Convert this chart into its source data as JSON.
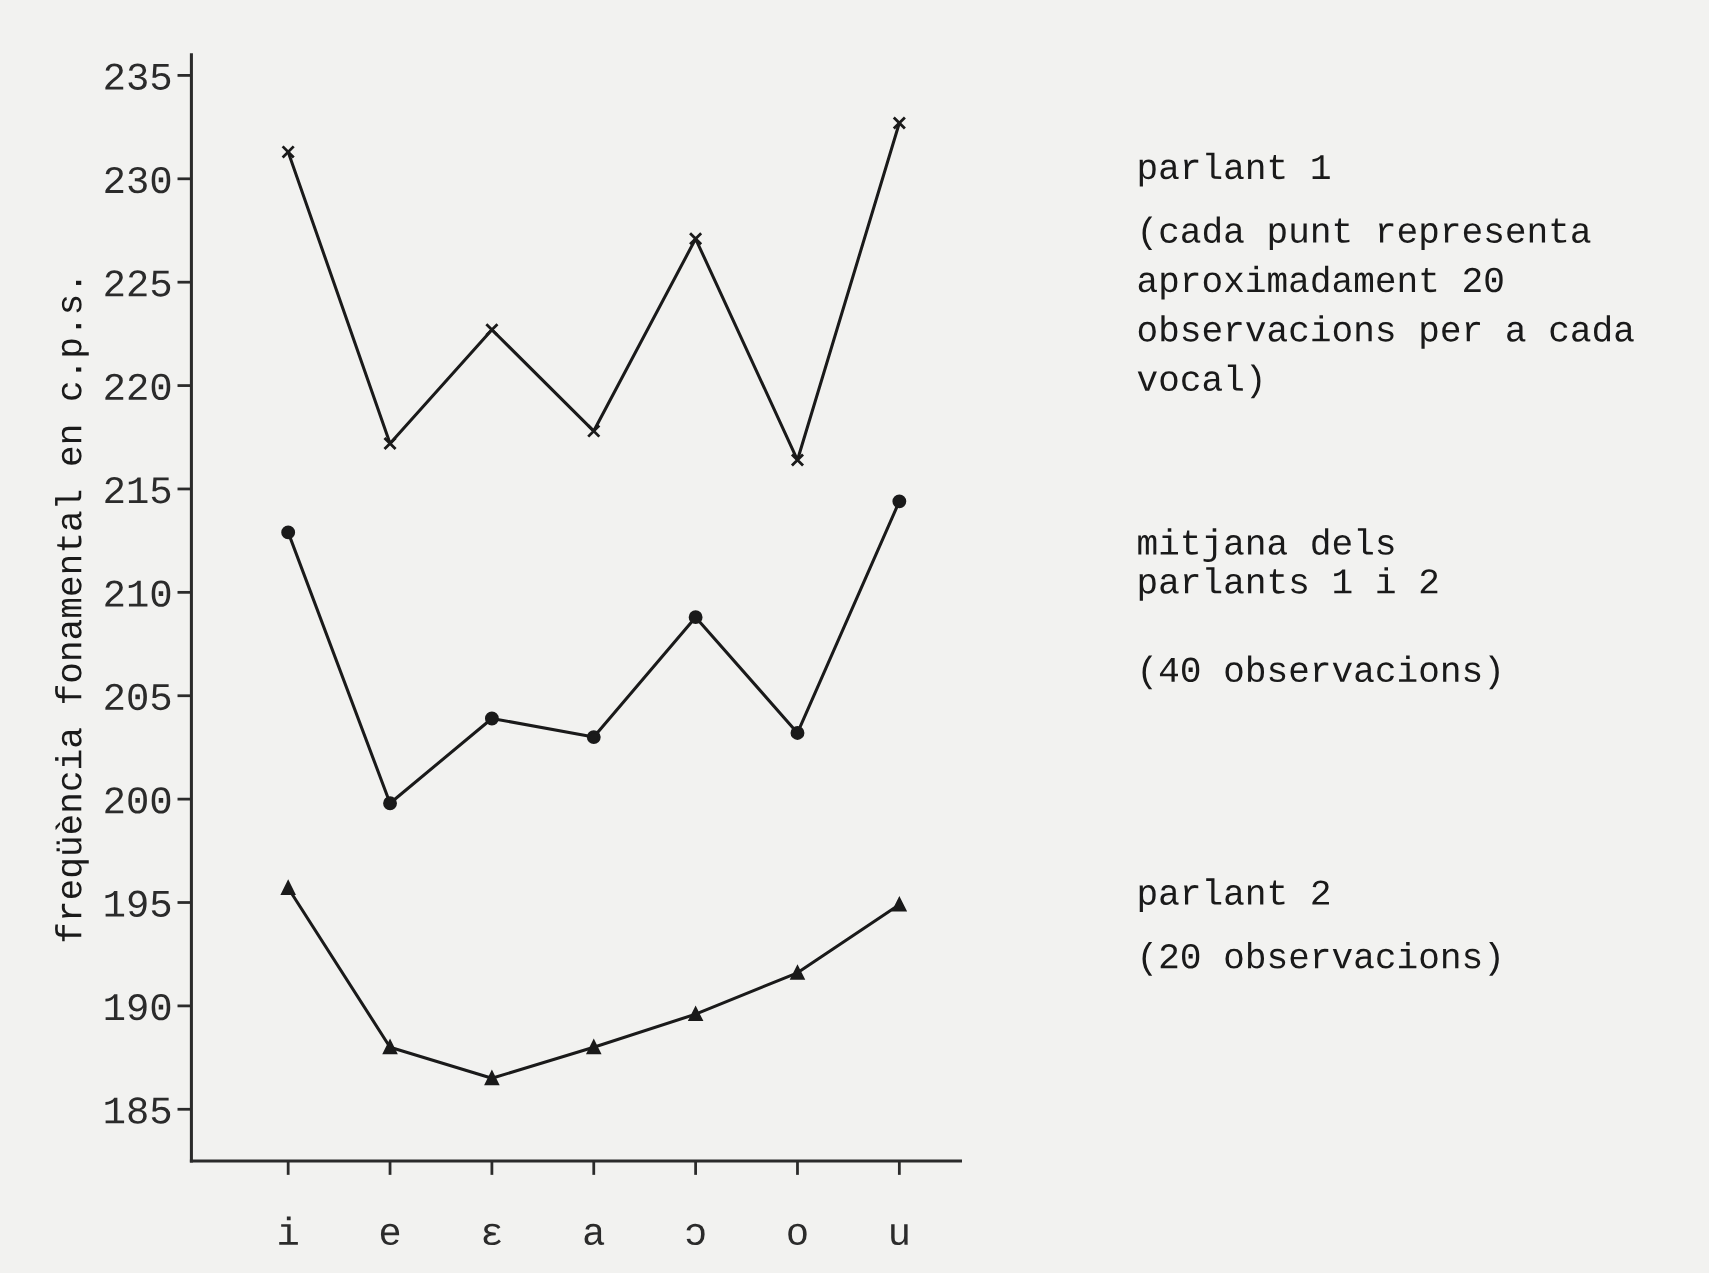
{
  "chart_data": {
    "type": "line",
    "ylabel": "freqüència fonamental en c.p.s.",
    "categories": [
      "i",
      "e",
      "ɛ",
      "a",
      "ɔ",
      "o",
      "u"
    ],
    "series": [
      {
        "name": "parlant 1",
        "color": "#1a1a1a",
        "marker": "cross",
        "values": [
          231.3,
          217.2,
          222.7,
          217.8,
          227.1,
          216.4,
          232.7
        ]
      },
      {
        "name": "mitjana dels\nparlants 1 i 2",
        "color": "#1a1a1a",
        "marker": "circle",
        "values": [
          212.9,
          199.8,
          203.9,
          203.0,
          208.8,
          203.2,
          214.4
        ]
      },
      {
        "name": "parlant 2",
        "color": "#1a1a1a",
        "marker": "triangle",
        "values": [
          195.7,
          188.0,
          186.5,
          188.0,
          189.6,
          191.6,
          194.9
        ]
      }
    ],
    "annotations": [
      "(cada punt representa aproximadament 20 observacions per a cada vocal)",
      "(40 observacions)",
      "(20 observacions)"
    ],
    "ylim": [
      182.5,
      236
    ],
    "yticks": [
      185,
      190,
      195,
      200,
      205,
      210,
      215,
      220,
      225,
      230,
      235
    ],
    "grid": false,
    "legend": "right",
    "line_style": "solid"
  }
}
